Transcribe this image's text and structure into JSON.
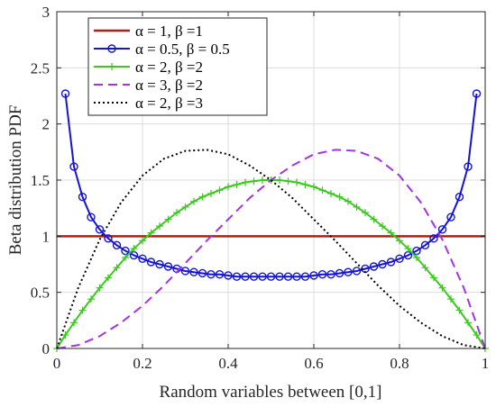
{
  "chart_data": {
    "type": "line",
    "xlabel": "Random variables between [0,1]",
    "ylabel": "Beta distribution PDF",
    "xlim": [
      0,
      1
    ],
    "ylim": [
      0,
      3
    ],
    "xticks": [
      "0",
      "0.2",
      "0.4",
      "0.6",
      "0.8",
      "1"
    ],
    "yticks": [
      "0",
      "0.5",
      "1",
      "1.5",
      "2",
      "2.5",
      "3"
    ],
    "grid": true,
    "legend_position": "top-left",
    "series": [
      {
        "name": "α = 1, β =1",
        "color": "#b41e12",
        "style": "solid",
        "marker": "none",
        "x": [
          0,
          0.2,
          0.4,
          0.6,
          0.8,
          1
        ],
        "y": [
          1,
          1,
          1,
          1,
          1,
          1
        ]
      },
      {
        "name": "α = 0.5, β = 0.5",
        "color": "#1414d2",
        "style": "solid",
        "marker": "circle",
        "x": [
          0.02,
          0.04,
          0.06,
          0.08,
          0.1,
          0.12,
          0.14,
          0.16,
          0.18,
          0.2,
          0.22,
          0.24,
          0.26,
          0.28,
          0.3,
          0.32,
          0.34,
          0.36,
          0.38,
          0.4,
          0.42,
          0.44,
          0.46,
          0.48,
          0.5,
          0.52,
          0.54,
          0.56,
          0.58,
          0.6,
          0.62,
          0.64,
          0.66,
          0.68,
          0.7,
          0.72,
          0.74,
          0.76,
          0.78,
          0.8,
          0.82,
          0.84,
          0.86,
          0.88,
          0.9,
          0.92,
          0.94,
          0.96,
          0.98
        ],
        "y": [
          2.27,
          1.62,
          1.35,
          1.17,
          1.06,
          0.98,
          0.92,
          0.87,
          0.83,
          0.8,
          0.77,
          0.75,
          0.73,
          0.71,
          0.69,
          0.68,
          0.67,
          0.66,
          0.66,
          0.65,
          0.64,
          0.64,
          0.64,
          0.64,
          0.64,
          0.64,
          0.64,
          0.64,
          0.64,
          0.65,
          0.66,
          0.66,
          0.67,
          0.68,
          0.69,
          0.71,
          0.73,
          0.75,
          0.77,
          0.8,
          0.83,
          0.87,
          0.92,
          0.98,
          1.06,
          1.17,
          1.35,
          1.62,
          2.27
        ]
      },
      {
        "name": "α = 2, β =2",
        "color": "#3cc81e",
        "style": "solid",
        "marker": "plus",
        "x": [
          0,
          0.02,
          0.04,
          0.06,
          0.08,
          0.1,
          0.12,
          0.14,
          0.16,
          0.18,
          0.2,
          0.22,
          0.24,
          0.26,
          0.28,
          0.3,
          0.32,
          0.34,
          0.36,
          0.38,
          0.4,
          0.42,
          0.44,
          0.46,
          0.48,
          0.5,
          0.52,
          0.54,
          0.56,
          0.58,
          0.6,
          0.62,
          0.64,
          0.66,
          0.68,
          0.7,
          0.72,
          0.74,
          0.76,
          0.78,
          0.8,
          0.82,
          0.84,
          0.86,
          0.88,
          0.9,
          0.92,
          0.94,
          0.96,
          0.98,
          1
        ],
        "y": [
          0,
          0.12,
          0.23,
          0.34,
          0.44,
          0.54,
          0.63,
          0.72,
          0.81,
          0.89,
          0.96,
          1.03,
          1.09,
          1.15,
          1.21,
          1.26,
          1.31,
          1.35,
          1.38,
          1.41,
          1.44,
          1.46,
          1.48,
          1.49,
          1.5,
          1.5,
          1.5,
          1.49,
          1.48,
          1.46,
          1.44,
          1.41,
          1.38,
          1.35,
          1.31,
          1.26,
          1.21,
          1.15,
          1.09,
          1.03,
          0.96,
          0.89,
          0.81,
          0.72,
          0.63,
          0.54,
          0.44,
          0.34,
          0.23,
          0.12,
          0
        ]
      },
      {
        "name": "α = 3, β =2",
        "color": "#a233e6",
        "style": "dashed",
        "marker": "none",
        "x": [
          0,
          0.05,
          0.1,
          0.15,
          0.2,
          0.25,
          0.3,
          0.35,
          0.4,
          0.45,
          0.5,
          0.55,
          0.6,
          0.65,
          0.7,
          0.75,
          0.8,
          0.85,
          0.9,
          0.95,
          1
        ],
        "y": [
          0,
          0.03,
          0.11,
          0.23,
          0.38,
          0.56,
          0.76,
          0.96,
          1.15,
          1.34,
          1.5,
          1.63,
          1.73,
          1.77,
          1.76,
          1.69,
          1.54,
          1.3,
          0.97,
          0.54,
          0
        ]
      },
      {
        "name": "α = 2, β =3",
        "color": "#000000",
        "style": "dotted",
        "marker": "none",
        "x": [
          0,
          0.05,
          0.1,
          0.15,
          0.2,
          0.25,
          0.3,
          0.35,
          0.4,
          0.45,
          0.5,
          0.55,
          0.6,
          0.65,
          0.7,
          0.75,
          0.8,
          0.85,
          0.9,
          0.95,
          1
        ],
        "y": [
          0,
          0.54,
          0.97,
          1.3,
          1.54,
          1.69,
          1.76,
          1.77,
          1.73,
          1.63,
          1.5,
          1.34,
          1.15,
          0.96,
          0.76,
          0.56,
          0.38,
          0.23,
          0.11,
          0.03,
          0
        ]
      }
    ]
  }
}
